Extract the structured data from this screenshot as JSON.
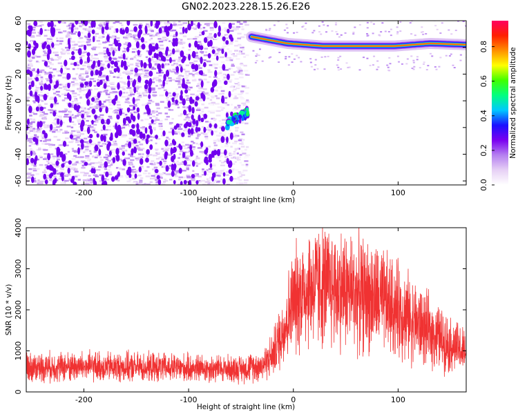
{
  "title": "GN02.2023.228.15.26.E26",
  "chart_data": [
    {
      "type": "heatmap",
      "xlabel": "Height of straight line (km)",
      "ylabel": "Frequency (Hz)",
      "xlim": [
        -255,
        165
      ],
      "ylim": [
        -63,
        60
      ],
      "x_ticks": [
        -200,
        -100,
        0,
        100
      ],
      "y_ticks": [
        -60,
        -40,
        -20,
        0,
        20,
        40,
        60
      ],
      "colorbar": {
        "label": "Normalized spectral amplitude",
        "range": [
          0.0,
          0.95
        ],
        "ticks": [
          0.0,
          0.2,
          0.4,
          0.6,
          0.8
        ],
        "colors": [
          "#ffffff",
          "#e6d0f5",
          "#b57ff0",
          "#7a00f0",
          "#1a10ff",
          "#00c8ff",
          "#00ff80",
          "#40ff00",
          "#ffff00",
          "#ff9000",
          "#ff2000",
          "#ff0060"
        ]
      },
      "features": [
        {
          "name": "",
          "x_range": [
            -255,
            -45
          ],
          "freq_range": [
            -63,
            60
          ],
          "amplitude": 0.1
        },
        {
          "name": "",
          "x": [
            -63,
            -42
          ],
          "freq": [
            -17,
            -8
          ],
          "amplitude": 0.4
        },
        {
          "name": "",
          "x_range": [
            -40,
            165
          ],
          "freq_center": [
            48,
            43,
            41,
            41,
            41,
            43,
            42
          ],
          "amplitude": 0.8
        }
      ]
    },
    {
      "type": "line",
      "xlabel": "Height of straight line (km)",
      "ylabel": "SNR (10 * v/v)",
      "xlim": [
        -255,
        165
      ],
      "ylim": [
        0,
        4000
      ],
      "x_ticks": [
        -200,
        -100,
        0,
        100
      ],
      "y_ticks": [
        0,
        1000,
        2000,
        3000,
        4000
      ],
      "color": "#f03232",
      "x": [
        -255,
        -200,
        -150,
        -100,
        -50,
        -30,
        -20,
        -10,
        0,
        10,
        25,
        50,
        75,
        100,
        125,
        150,
        165
      ],
      "y": [
        600,
        620,
        600,
        580,
        560,
        650,
        900,
        1500,
        2200,
        2500,
        2600,
        2500,
        2300,
        2000,
        1550,
        1150,
        950
      ]
    }
  ]
}
